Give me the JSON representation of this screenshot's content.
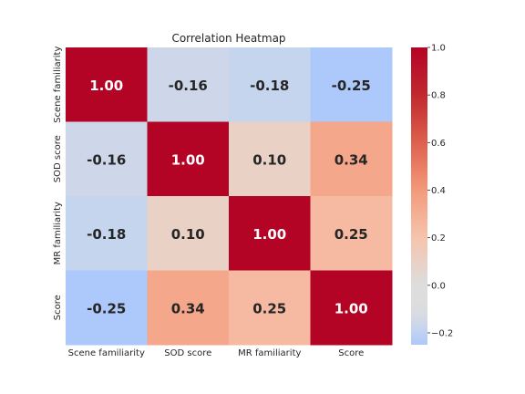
{
  "chart_data": {
    "type": "heatmap",
    "title": "Correlation Heatmap",
    "xlabel": "",
    "ylabel": "",
    "x_labels": [
      "Scene familiarity",
      "SOD score",
      "MR familiarity",
      "Score"
    ],
    "y_labels": [
      "Scene familiarity",
      "SOD score",
      "MR familiarity",
      "Score"
    ],
    "values": [
      [
        1.0,
        -0.16,
        -0.18,
        -0.25
      ],
      [
        -0.16,
        1.0,
        0.1,
        0.34
      ],
      [
        -0.18,
        0.1,
        1.0,
        0.25
      ],
      [
        -0.25,
        0.34,
        0.25,
        1.0
      ]
    ],
    "annotations": [
      [
        "1.00",
        "-0.16",
        "-0.18",
        "-0.25"
      ],
      [
        "-0.16",
        "1.00",
        "0.10",
        "0.34"
      ],
      [
        "-0.18",
        "0.10",
        "1.00",
        "0.25"
      ],
      [
        "-0.25",
        "0.34",
        "0.25",
        "1.00"
      ]
    ],
    "colormap": "coolwarm",
    "vmin": -0.25,
    "vmax": 1.0,
    "colorbar_ticks": [
      1.0,
      0.8,
      0.6,
      0.4,
      0.2,
      0.0,
      -0.2
    ],
    "colorbar_tick_labels": [
      "1.0",
      "0.8",
      "0.6",
      "0.4",
      "0.2",
      "0.0",
      "−0.2"
    ],
    "legend_position": "right"
  }
}
